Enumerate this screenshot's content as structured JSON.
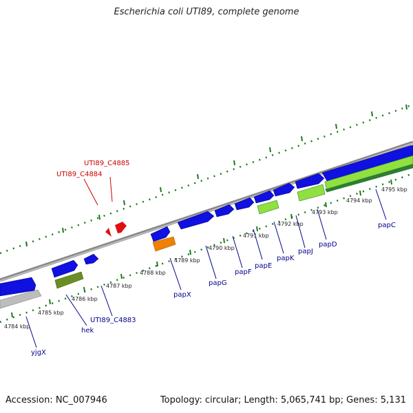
{
  "title": "Escherichia coli UTI89, complete genome",
  "footer": {
    "accession": "Accession: NC_007946",
    "topology": "Topology: circular; Length: 5,065,741 bp; Genes: 5,131"
  },
  "colors": {
    "blue_gene": "#1010e0",
    "red_gene": "#e01010",
    "red_label": "#cc0000",
    "blue_label": "#00008b",
    "orange_gene": "#f08000",
    "olive_gene": "#6b8e23",
    "green_gene": "#90e040",
    "gray_gene": "#bdbdbd",
    "tick_green": "#1a7a1a",
    "backbone": "#888888"
  },
  "kbp_labels": [
    "4784 kbp",
    "4785 kbp",
    "4786 kbp",
    "4787 kbp",
    "4788 kbp",
    "4789 kbp",
    "4790 kbp",
    "4791 kbp",
    "4792 kbp",
    "4793 kbp",
    "4794 kbp",
    "4795 kbp"
  ],
  "gene_labels_bottom": [
    "yjgX",
    "hek",
    "UTI89_C4883",
    "papX",
    "papG",
    "papF",
    "papE",
    "papK",
    "papJ",
    "papD",
    "papC"
  ],
  "gene_labels_top": [
    "UTI89_C4885",
    "UTI89_C4884"
  ]
}
